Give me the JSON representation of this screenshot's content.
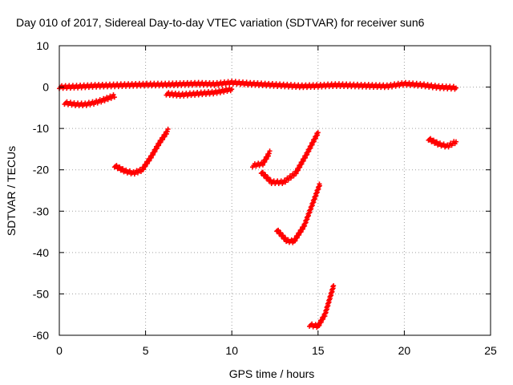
{
  "chart_data": {
    "type": "scatter",
    "title": "Day 010 of 2017, Sidereal Day-to-day VTEC variation (SDTVAR) for receiver sun6",
    "xlabel": "GPS time / hours",
    "ylabel": "SDTVAR / TECUs",
    "xlim": [
      0,
      25
    ],
    "ylim": [
      -60,
      10
    ],
    "xticks": [
      0,
      5,
      10,
      15,
      20,
      25
    ],
    "yticks": [
      -60,
      -50,
      -40,
      -30,
      -20,
      -10,
      0,
      10
    ],
    "grid": true,
    "marker_color": "#ff0000",
    "series": [
      {
        "x": [
          0.0,
          1.0,
          2.0,
          3.0,
          4.0,
          5.0,
          6.0,
          7.0,
          8.0,
          9.0,
          10.0,
          11.0,
          12.0,
          13.0,
          14.0,
          15.0,
          16.0,
          17.0,
          18.0,
          19.0,
          20.0,
          21.0,
          22.0,
          23.0
        ],
        "y": [
          0.0,
          0.1,
          0.3,
          0.4,
          0.5,
          0.6,
          0.6,
          0.7,
          0.8,
          0.7,
          1.1,
          0.8,
          0.6,
          0.4,
          0.2,
          0.3,
          0.5,
          0.4,
          0.3,
          0.2,
          0.8,
          0.5,
          0.0,
          -0.2
        ]
      },
      {
        "x": [
          0.3,
          1.0,
          1.5,
          2.0,
          2.5,
          3.2
        ],
        "y": [
          -3.8,
          -4.2,
          -4.2,
          -3.8,
          -3.2,
          -2.1
        ]
      },
      {
        "x": [
          6.2,
          7.0,
          8.0,
          9.0,
          10.0
        ],
        "y": [
          -1.6,
          -1.9,
          -1.6,
          -1.3,
          -0.5
        ]
      },
      {
        "x": [
          3.2,
          3.8,
          4.3,
          4.8,
          5.3,
          5.8,
          6.3
        ],
        "y": [
          -19.0,
          -20.3,
          -20.8,
          -20.0,
          -17.0,
          -13.5,
          -10.5
        ]
      },
      {
        "x": [
          11.2,
          11.8,
          12.2
        ],
        "y": [
          -19.0,
          -18.5,
          -15.8
        ]
      },
      {
        "x": [
          11.7,
          12.3,
          13.0,
          13.7,
          14.3,
          15.0
        ],
        "y": [
          -20.5,
          -23.0,
          -23.0,
          -20.8,
          -16.5,
          -11.0
        ]
      },
      {
        "x": [
          12.6,
          13.2,
          13.6,
          14.2,
          14.7,
          15.1
        ],
        "y": [
          -34.5,
          -37.2,
          -37.3,
          -33.5,
          -28.0,
          -23.5
        ]
      },
      {
        "x": [
          14.5,
          15.0,
          15.4,
          15.9
        ],
        "y": [
          -57.5,
          -57.8,
          -55.0,
          -48.0
        ]
      },
      {
        "x": [
          21.4,
          22.0,
          22.5,
          23.0
        ],
        "y": [
          -12.5,
          -13.8,
          -14.3,
          -13.2
        ]
      }
    ]
  }
}
